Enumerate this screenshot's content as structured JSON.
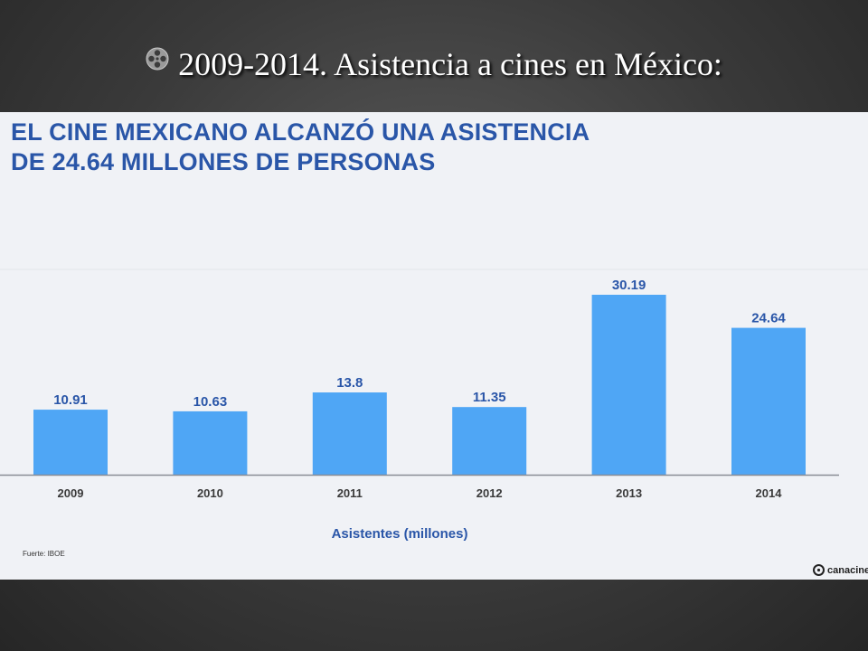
{
  "slide": {
    "title": "2009-2014. Asistencia a cines en México:",
    "icon": "film-reel-icon"
  },
  "infographic": {
    "headline_line1": "EL CINE MEXICANO ALCANZÓ UNA ASISTENCIA",
    "headline_line2": "DE 24.64 MILLONES DE PERSONAS",
    "source": "Fuerte: IBOE",
    "logo_text": "canacine",
    "colors": {
      "headline": "#2a56a8",
      "bar": "#4fa6f5",
      "value_label": "#2a56a8",
      "tick_label": "#3a3a3a",
      "axis_label": "#2a56a8"
    }
  },
  "chart_data": {
    "type": "bar",
    "categories": [
      "2009",
      "2010",
      "2011",
      "2012",
      "2013",
      "2014"
    ],
    "values": [
      10.91,
      10.63,
      13.8,
      11.35,
      30.19,
      24.64
    ],
    "value_labels": [
      "10.91",
      "10.63",
      "13.8",
      "11.35",
      "30.19",
      "24.64"
    ],
    "title": "",
    "xlabel": "Asistentes (millones)",
    "ylabel": "",
    "ylim": [
      0,
      35
    ],
    "grid": false,
    "legend": "none"
  }
}
